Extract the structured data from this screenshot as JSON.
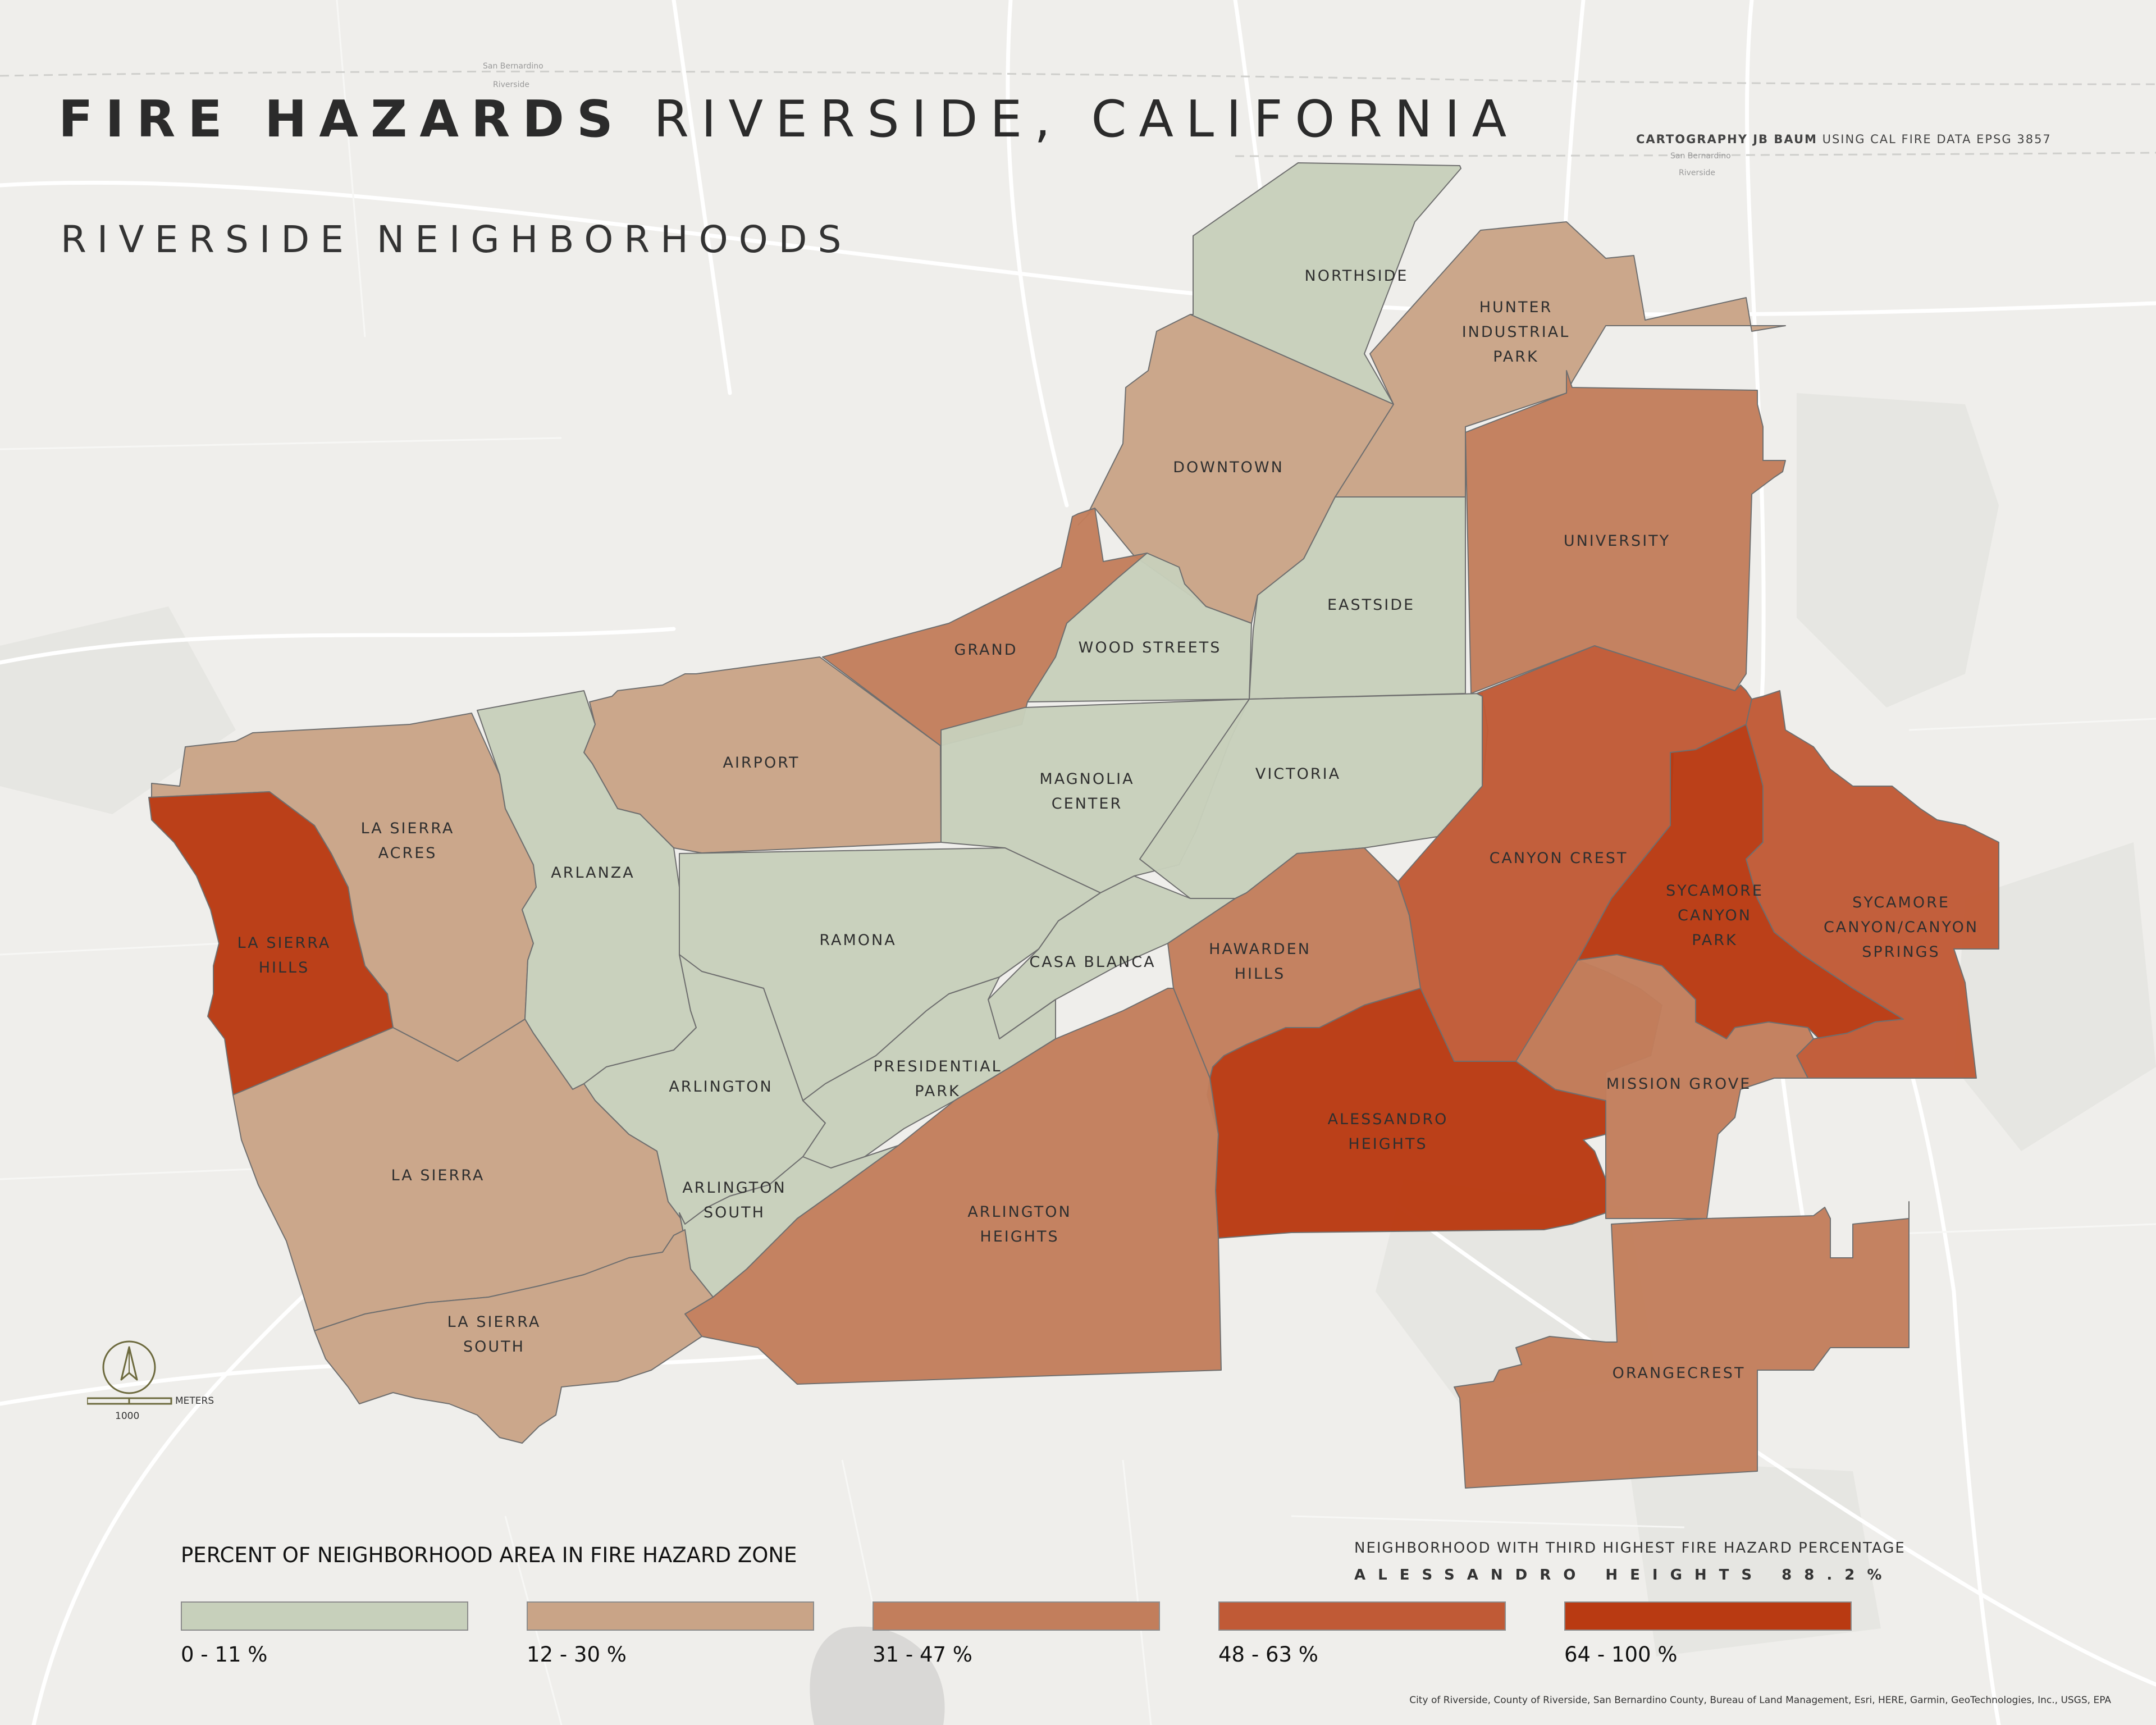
{
  "title": {
    "bold": "FIRE HAZARDS",
    "rest": "RIVERSIDE, CALIFORNIA"
  },
  "subtitle": "RIVERSIDE NEIGHBORHOODS",
  "credit": {
    "bold": "CARTOGRAPHY JB BAUM",
    "rest": "USING CAL FIRE DATA EPSG 3857"
  },
  "colors": {
    "class_1": "#c7d0bb",
    "class_2": "#c9a487",
    "class_3": "#c27e5c",
    "class_4": "#c05a36",
    "class_5": "#b93a12",
    "basemap": "#efeeeb"
  },
  "legend": {
    "title": "PERCENT OF NEIGHBORHOOD AREA IN FIRE HAZARD ZONE",
    "classes": [
      {
        "label": "0 - 11 %",
        "color": "#c7d0bb"
      },
      {
        "label": "12 - 30 %",
        "color": "#c9a487"
      },
      {
        "label": "31 - 47 %",
        "color": "#c27e5c"
      },
      {
        "label": "48 - 63 %",
        "color": "#c05a36"
      },
      {
        "label": "64 - 100 %",
        "color": "#b93a12"
      }
    ]
  },
  "third_highest": {
    "title": "NEIGHBORHOOD WITH THIRD HIGHEST FIRE HAZARD PERCENTAGE",
    "value": "ALESSANDRO HEIGHTS 88.2%"
  },
  "scale": {
    "unit": "METERS",
    "value": "1000"
  },
  "sources": "City of Riverside, County of Riverside, San Bernardino County, Bureau of Land Management, Esri, HERE, Garmin, GeoTechnologies, Inc., USGS, EPA",
  "basemap_labels": {
    "san_bernardino_1": "San Bernardino",
    "riverside_1": "Riverside",
    "san_bernardino_2": "San Bernardino",
    "riverside_2": "Riverside"
  },
  "neighborhoods": {
    "northside": {
      "name": "NORTHSIDE",
      "hazard_class": 1
    },
    "hunter_industrial_park": {
      "name": "HUNTER INDUSTRIAL PARK",
      "lines": [
        "HUNTER",
        "INDUSTRIAL",
        "PARK"
      ],
      "hazard_class": 2
    },
    "downtown": {
      "name": "DOWNTOWN",
      "hazard_class": 2
    },
    "university": {
      "name": "UNIVERSITY",
      "hazard_class": 3
    },
    "eastside": {
      "name": "EASTSIDE",
      "hazard_class": 1
    },
    "grand": {
      "name": "GRAND",
      "hazard_class": 3
    },
    "wood_streets": {
      "name": "WOOD STREETS",
      "hazard_class": 1
    },
    "airport": {
      "name": "AIRPORT",
      "hazard_class": 2
    },
    "magnolia_center": {
      "name": "MAGNOLIA CENTER",
      "lines": [
        "MAGNOLIA",
        "CENTER"
      ],
      "hazard_class": 1
    },
    "victoria": {
      "name": "VICTORIA",
      "hazard_class": 1
    },
    "la_sierra_acres": {
      "name": "LA SIERRA ACRES",
      "lines": [
        "LA SIERRA",
        "ACRES"
      ],
      "hazard_class": 2
    },
    "arlanza": {
      "name": "ARLANZA",
      "hazard_class": 1
    },
    "la_sierra_hills": {
      "name": "LA SIERRA HILLS",
      "lines": [
        "LA SIERRA",
        "HILLS"
      ],
      "hazard_class": 5
    },
    "ramona": {
      "name": "RAMONA",
      "hazard_class": 1
    },
    "canyon_crest": {
      "name": "CANYON CREST",
      "hazard_class": 4
    },
    "sycamore_canyon_park": {
      "name": "SYCAMORE CANYON PARK",
      "lines": [
        "SYCAMORE",
        "CANYON",
        "PARK"
      ],
      "hazard_class": 5
    },
    "sycamore_canyon_springs": {
      "name": "SYCAMORE CANYON/CANYON SPRINGS",
      "lines": [
        "SYCAMORE",
        "CANYON/CANYON",
        "SPRINGS"
      ],
      "hazard_class": 4
    },
    "casa_blanca": {
      "name": "CASA BLANCA",
      "hazard_class": 1
    },
    "hawarden_hills": {
      "name": "HAWARDEN HILLS",
      "lines": [
        "HAWARDEN",
        "HILLS"
      ],
      "hazard_class": 3
    },
    "arlington": {
      "name": "ARLINGTON",
      "hazard_class": 1
    },
    "presidential_park": {
      "name": "PRESIDENTIAL PARK",
      "lines": [
        "PRESIDENTIAL",
        "PARK"
      ],
      "hazard_class": 1
    },
    "alessandro_heights": {
      "name": "ALESSANDRO HEIGHTS",
      "lines": [
        "ALESSANDRO",
        "HEIGHTS"
      ],
      "hazard_class": 5
    },
    "mission_grove": {
      "name": "MISSION GROVE",
      "hazard_class": 3
    },
    "la_sierra": {
      "name": "LA SIERRA",
      "hazard_class": 2
    },
    "arlington_south": {
      "name": "ARLINGTON SOUTH",
      "lines": [
        "ARLINGTON",
        "SOUTH"
      ],
      "hazard_class": 1
    },
    "arlington_heights": {
      "name": "ARLINGTON HEIGHTS",
      "lines": [
        "ARLINGTON",
        "HEIGHTS"
      ],
      "hazard_class": 3
    },
    "la_sierra_south": {
      "name": "LA SIERRA SOUTH",
      "lines": [
        "LA SIERRA",
        "SOUTH"
      ],
      "hazard_class": 2
    },
    "orangecrest": {
      "name": "ORANGECREST",
      "hazard_class": 3
    }
  }
}
